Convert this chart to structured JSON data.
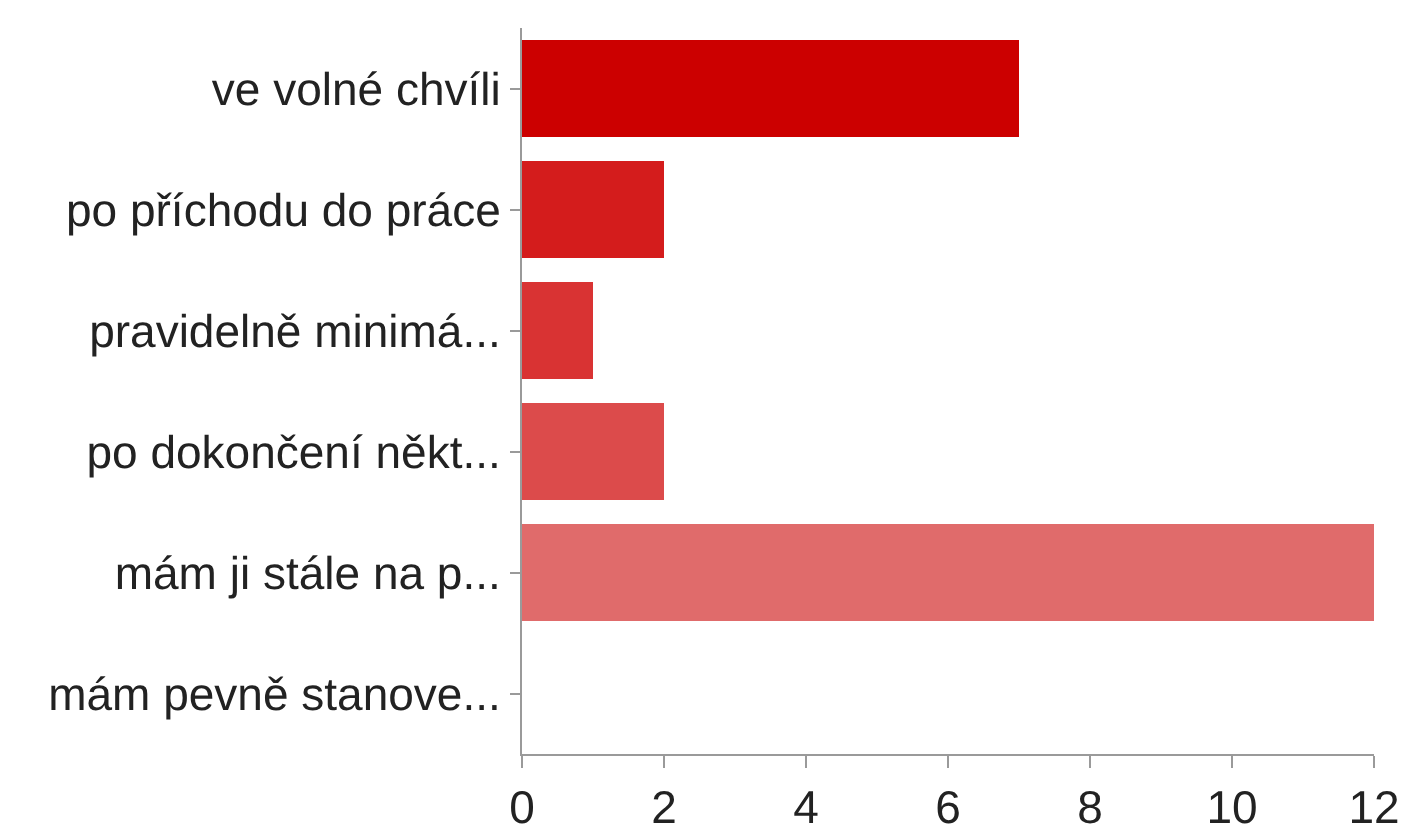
{
  "chart_data": {
    "type": "bar",
    "orientation": "horizontal",
    "categories": [
      "ve volné chvíli",
      "po příchodu do práce",
      "pravidelně minimá...",
      "po dokončení někt...",
      "mám ji stále na p...",
      "mám pevně stanove..."
    ],
    "values": [
      7,
      2,
      1,
      2,
      12,
      0
    ],
    "colors": [
      "#cc0000",
      "#d41c1c",
      "#d93333",
      "#dc4b4b",
      "#e06b6b",
      "#e48585"
    ],
    "xlim": [
      0,
      12
    ],
    "xticks": [
      0,
      2,
      4,
      6,
      8,
      10,
      12
    ],
    "grid": false
  }
}
